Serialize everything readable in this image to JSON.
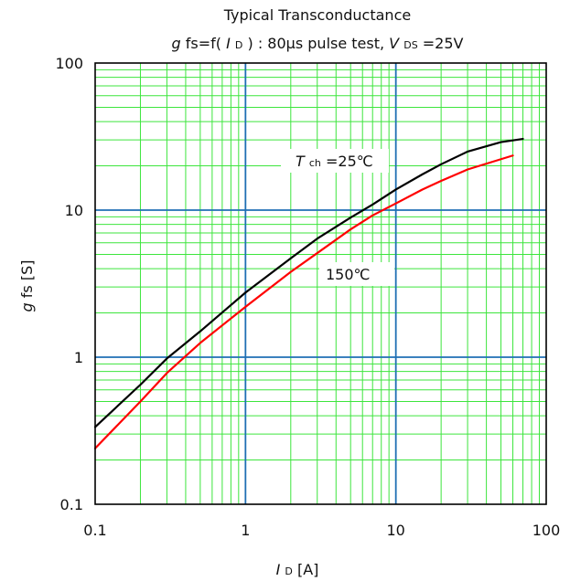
{
  "chart_data": {
    "type": "line",
    "title": "Typical Transconductance",
    "subtitle_parts": {
      "g": "g",
      "fs_eq": "fs=f(",
      "I": "I",
      "D": "D",
      "middle": ") : 80μs pulse test, ",
      "V": "V",
      "DS": "DS",
      "tail": "=25V"
    },
    "xlabel_parts": {
      "I": "I",
      "D": "D",
      "unit": " [A]"
    },
    "ylabel_parts": {
      "g": "g",
      "fs": "fs",
      "unit": "  [S]"
    },
    "x_scale": "log",
    "y_scale": "log",
    "xlim": [
      0.1,
      100
    ],
    "ylim": [
      0.1,
      100
    ],
    "x_ticks": [
      "0.1",
      "1",
      "10",
      "100"
    ],
    "y_ticks": [
      "100",
      "10",
      "1",
      "0.1"
    ],
    "grid": true,
    "series": [
      {
        "name": "Tch=25℃",
        "color": "#000000",
        "points": [
          [
            0.1,
            0.335
          ],
          [
            0.2,
            0.65
          ],
          [
            0.3,
            0.98
          ],
          [
            0.5,
            1.5
          ],
          [
            1,
            2.75
          ],
          [
            2,
            4.7
          ],
          [
            3,
            6.4
          ],
          [
            5,
            8.9
          ],
          [
            7,
            10.9
          ],
          [
            10,
            13.8
          ],
          [
            15,
            17.5
          ],
          [
            20,
            20.5
          ],
          [
            30,
            25.0
          ],
          [
            50,
            29.0
          ],
          [
            70,
            30.5
          ]
        ]
      },
      {
        "name": "150℃",
        "color": "#ff0000",
        "points": [
          [
            0.1,
            0.24
          ],
          [
            0.2,
            0.5
          ],
          [
            0.3,
            0.78
          ],
          [
            0.5,
            1.25
          ],
          [
            1,
            2.2
          ],
          [
            2,
            3.8
          ],
          [
            3,
            5.1
          ],
          [
            5,
            7.4
          ],
          [
            7,
            9.2
          ],
          [
            10,
            11.1
          ],
          [
            15,
            13.8
          ],
          [
            20,
            15.8
          ],
          [
            30,
            18.9
          ],
          [
            50,
            22.2
          ],
          [
            60,
            23.5
          ]
        ]
      }
    ],
    "annotations": {
      "tch_T": "T",
      "tch_ch": "ch",
      "tch_tail": "=25℃",
      "hot": "150℃"
    },
    "colors": {
      "minor_grid": "#3de53d",
      "major_grid": "#1f6fb4",
      "frame": "#000000"
    }
  }
}
